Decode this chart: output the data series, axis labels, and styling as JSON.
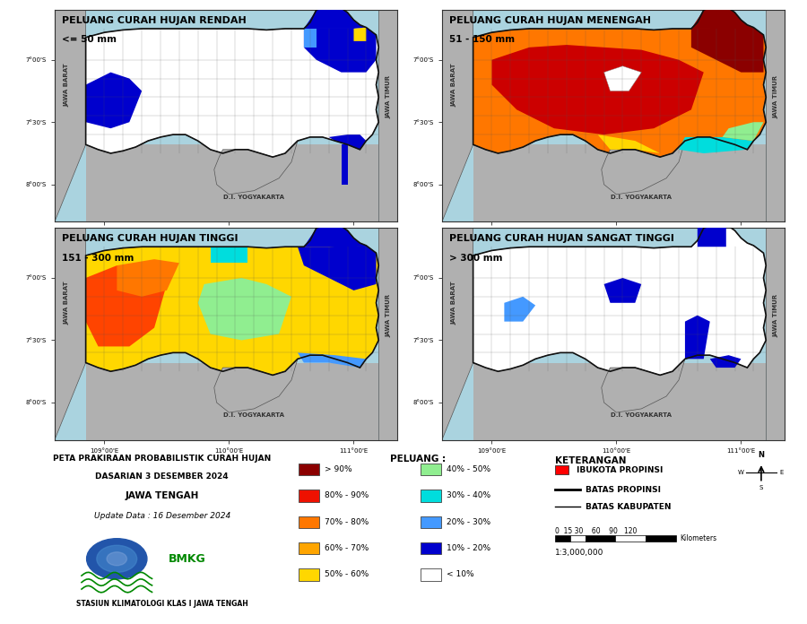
{
  "figure_bg": "#ffffff",
  "map_ocean_color": "#aad3df",
  "panels": [
    {
      "title_line1": "PELUANG CURAH HUJAN RENDAH",
      "title_line2": "<= 50 mm",
      "xlim": [
        108.6,
        111.35
      ],
      "ylim": [
        -8.3,
        -6.6
      ]
    },
    {
      "title_line1": "PELUANG CURAH HUJAN MENENGAH",
      "title_line2": "51 - 150 mm",
      "xlim": [
        108.6,
        111.35
      ],
      "ylim": [
        -8.3,
        -6.6
      ]
    },
    {
      "title_line1": "PELUANG CURAH HUJAN TINGGI",
      "title_line2": "151 - 300 mm",
      "xlim": [
        108.6,
        111.35
      ],
      "ylim": [
        -8.3,
        -6.6
      ]
    },
    {
      "title_line1": "PELUANG CURAH HUJAN SANGAT TINGGI",
      "title_line2": "> 300 mm",
      "xlim": [
        108.6,
        111.35
      ],
      "ylim": [
        -8.3,
        -6.6
      ]
    }
  ],
  "legend_colors": [
    {
      "color": "#8B0000",
      "label": "> 90%"
    },
    {
      "color": "#EE1100",
      "label": "80% - 90%"
    },
    {
      "color": "#FF7700",
      "label": "70% - 80%"
    },
    {
      "color": "#FFA500",
      "label": "60% - 70%"
    },
    {
      "color": "#FFD700",
      "label": "50% - 60%"
    },
    {
      "color": "#90EE90",
      "label": "40% - 50%"
    },
    {
      "color": "#00DDDD",
      "label": "30% - 40%"
    },
    {
      "color": "#4499FF",
      "label": "20% - 30%"
    },
    {
      "color": "#0000CD",
      "label": "10% - 20%"
    },
    {
      "color": "#ffffff",
      "label": "< 10%"
    }
  ],
  "info_text_line1": "PETA PRAKIRAAN PROBABILISTIK CURAH HUJAN",
  "info_text_line2": "DASARIAN 3 DESEMBER 2024",
  "info_text_line3": "JAWA TENGAH",
  "info_text_line4": "Update Data : 16 Desember 2024",
  "info_text_line5": "STASIUN KLIMATOLOGI KLAS I JAWA TENGAH",
  "xticks": [
    109.0,
    110.0,
    111.0
  ],
  "yticks": [
    -8.0,
    -7.5,
    -7.0
  ],
  "xtick_labels": [
    "109°00'E",
    "110°00'E",
    "111°00'E"
  ],
  "ytick_labels": [
    "8°00'S",
    "7°30'S",
    "7°00'S"
  ]
}
